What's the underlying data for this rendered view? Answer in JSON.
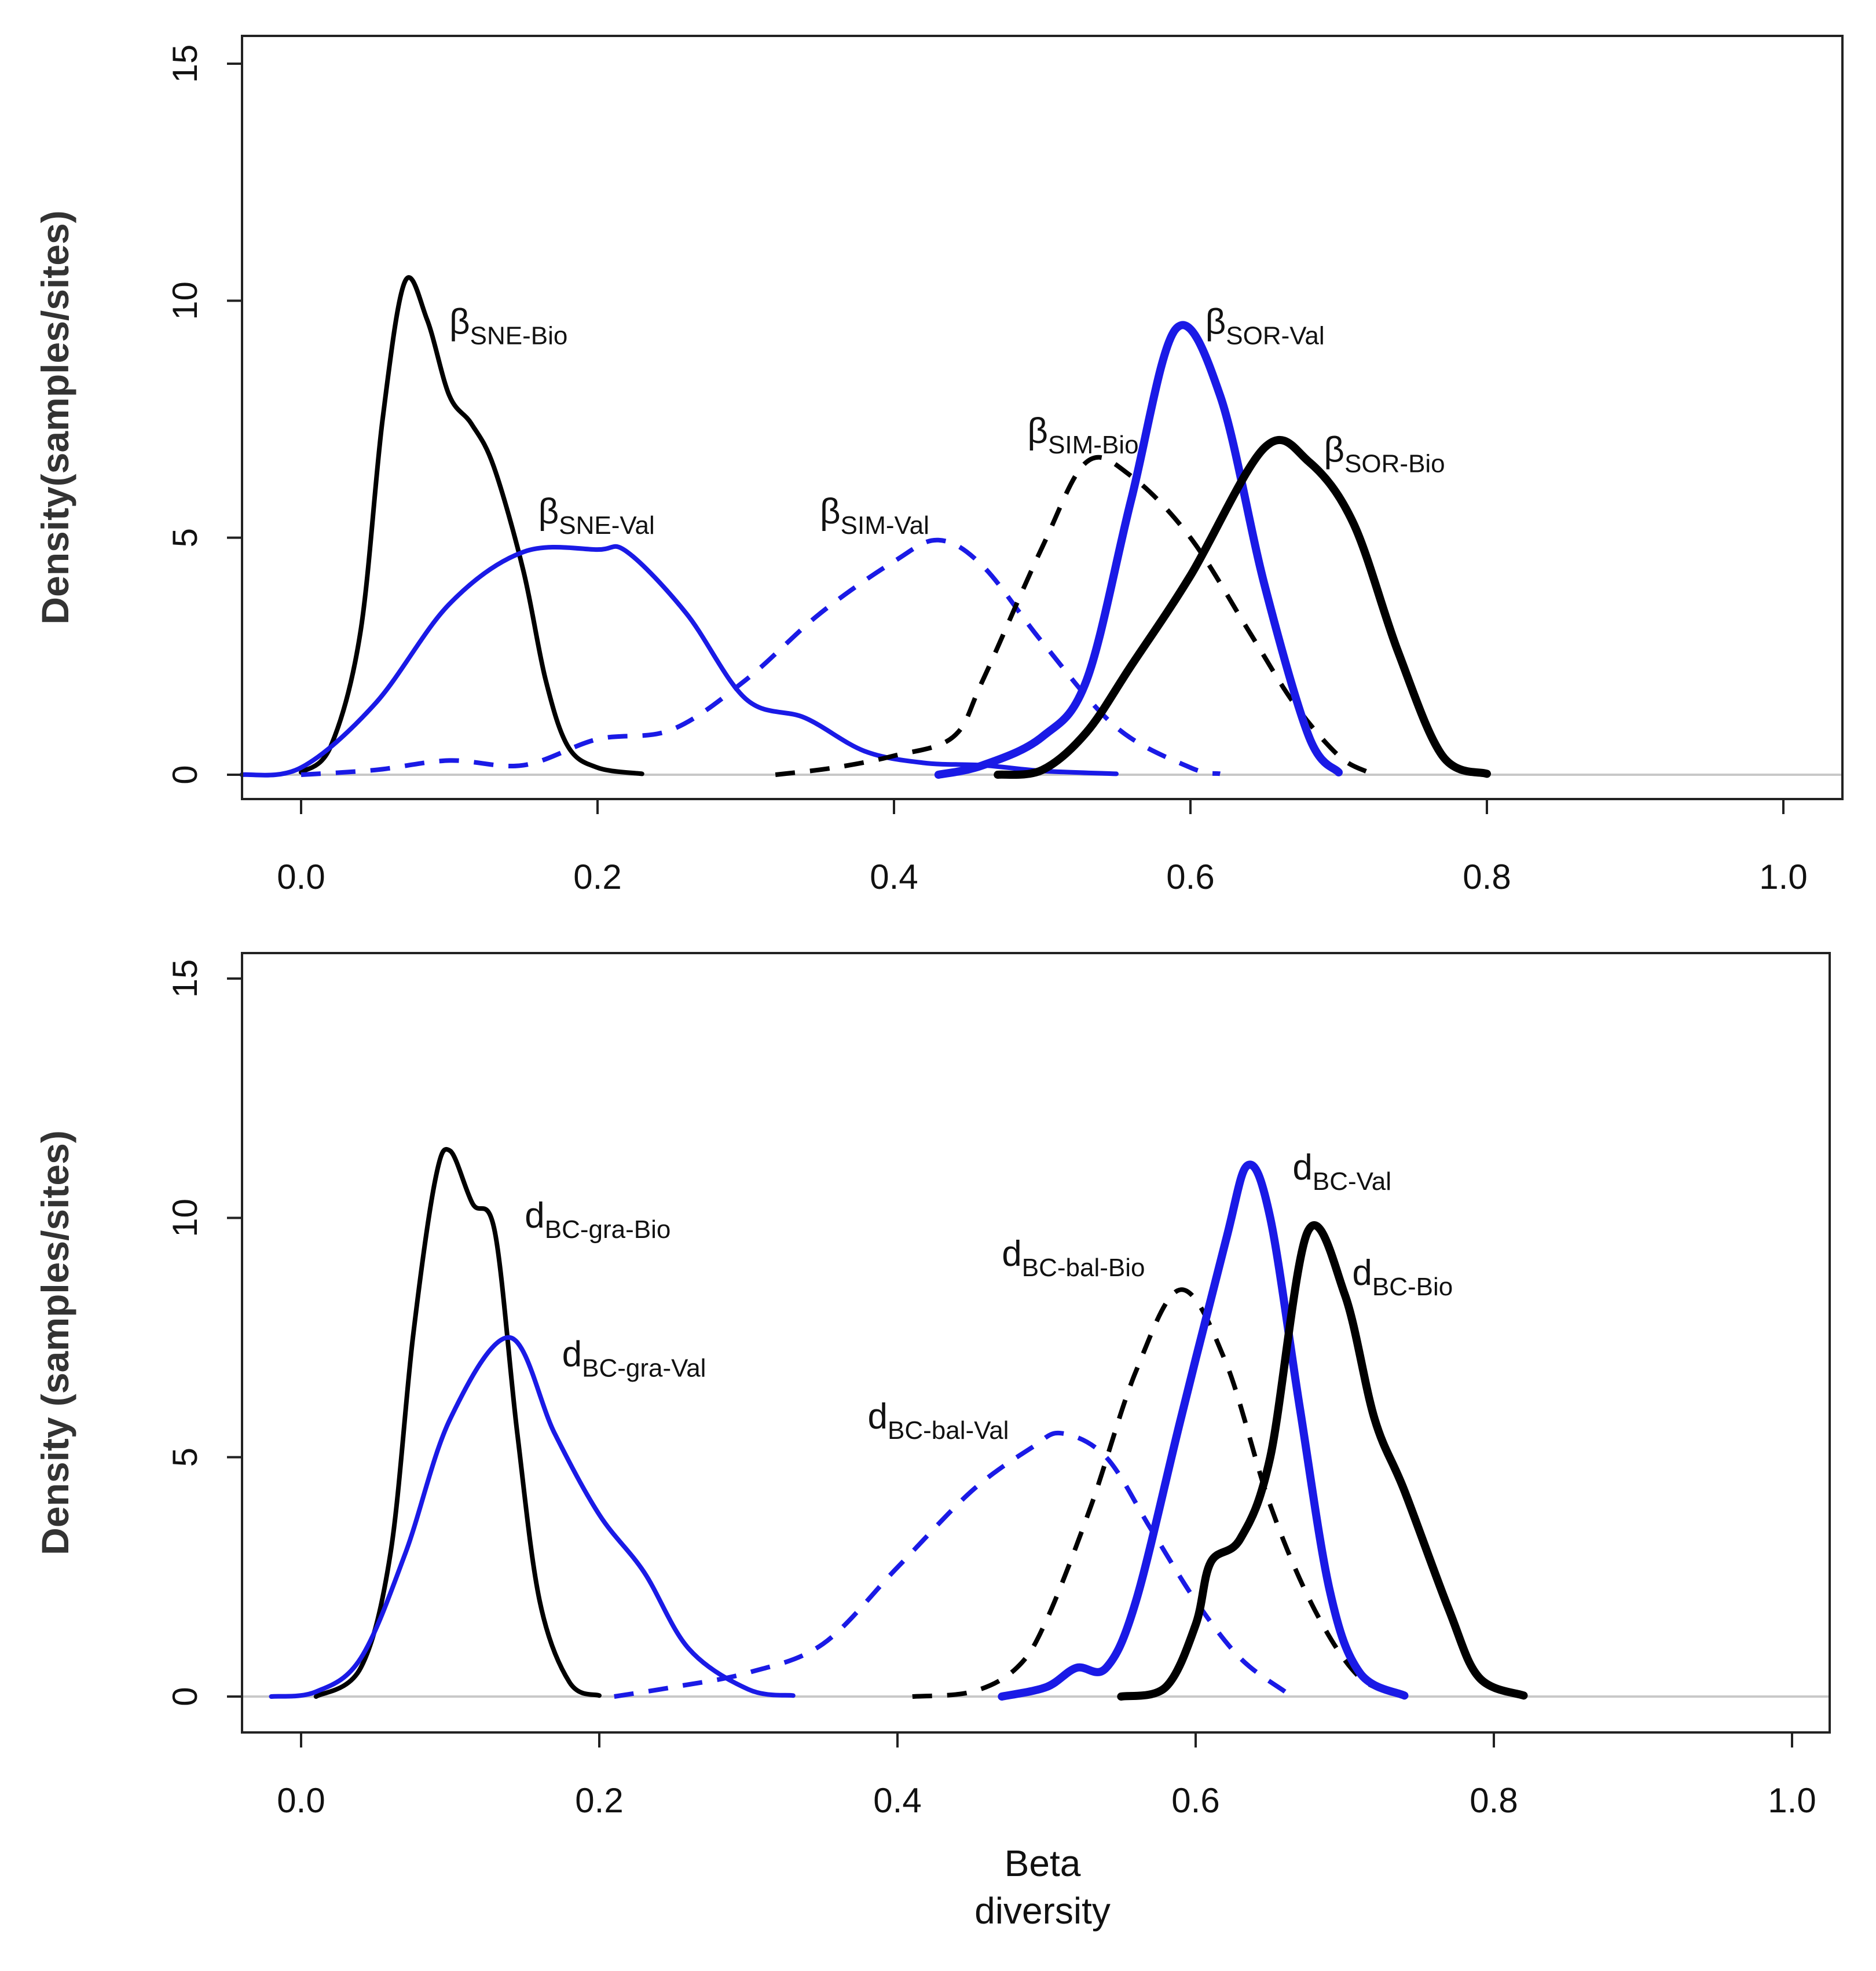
{
  "chart_data": [
    {
      "type": "line",
      "title": "",
      "xlabel": "",
      "ylabel": "Density(samples/sites)",
      "xlim": [
        0.0,
        1.0
      ],
      "ylim": [
        0,
        15
      ],
      "x_ticks": [
        "0.0",
        "0.2",
        "0.4",
        "0.6",
        "0.8",
        "1.0"
      ],
      "y_ticks": [
        "0",
        "5",
        "10",
        "15"
      ],
      "grid": false,
      "series": [
        {
          "name": "βSNE-Bio",
          "color": "#000000",
          "dash": "solid",
          "weight": "thin",
          "points": [
            [
              0.0,
              0.05
            ],
            [
              0.02,
              0.6
            ],
            [
              0.04,
              3.0
            ],
            [
              0.055,
              7.5
            ],
            [
              0.07,
              10.4
            ],
            [
              0.085,
              9.6
            ],
            [
              0.1,
              8.0
            ],
            [
              0.115,
              7.4
            ],
            [
              0.13,
              6.5
            ],
            [
              0.15,
              4.3
            ],
            [
              0.165,
              2.0
            ],
            [
              0.18,
              0.6
            ],
            [
              0.2,
              0.15
            ],
            [
              0.23,
              0.02
            ]
          ]
        },
        {
          "name": "βSNE-Val",
          "color": "#1a1ae6",
          "dash": "solid",
          "weight": "thin",
          "points": [
            [
              -0.04,
              0.0
            ],
            [
              0.0,
              0.15
            ],
            [
              0.05,
              1.5
            ],
            [
              0.1,
              3.6
            ],
            [
              0.15,
              4.7
            ],
            [
              0.2,
              4.75
            ],
            [
              0.22,
              4.7
            ],
            [
              0.26,
              3.4
            ],
            [
              0.3,
              1.6
            ],
            [
              0.34,
              1.2
            ],
            [
              0.38,
              0.5
            ],
            [
              0.42,
              0.25
            ],
            [
              0.46,
              0.2
            ],
            [
              0.5,
              0.08
            ],
            [
              0.55,
              0.02
            ]
          ]
        },
        {
          "name": "βSIM-Val",
          "color": "#1a1ae6",
          "dash": "dashed",
          "weight": "thin",
          "points": [
            [
              0.0,
              0.0
            ],
            [
              0.05,
              0.1
            ],
            [
              0.1,
              0.3
            ],
            [
              0.15,
              0.2
            ],
            [
              0.2,
              0.75
            ],
            [
              0.25,
              0.95
            ],
            [
              0.3,
              2.0
            ],
            [
              0.35,
              3.4
            ],
            [
              0.4,
              4.5
            ],
            [
              0.43,
              4.95
            ],
            [
              0.46,
              4.4
            ],
            [
              0.5,
              2.8
            ],
            [
              0.55,
              1.0
            ],
            [
              0.6,
              0.15
            ],
            [
              0.62,
              0.02
            ]
          ]
        },
        {
          "name": "βSIM-Bio",
          "color": "#000000",
          "dash": "dashed",
          "weight": "thin",
          "points": [
            [
              0.32,
              0.0
            ],
            [
              0.36,
              0.15
            ],
            [
              0.4,
              0.4
            ],
            [
              0.44,
              0.8
            ],
            [
              0.46,
              2.0
            ],
            [
              0.5,
              4.8
            ],
            [
              0.53,
              6.6
            ],
            [
              0.56,
              6.3
            ],
            [
              0.6,
              5.0
            ],
            [
              0.64,
              3.0
            ],
            [
              0.67,
              1.5
            ],
            [
              0.7,
              0.4
            ],
            [
              0.72,
              0.05
            ]
          ]
        },
        {
          "name": "βSOR-Val",
          "color": "#1a1ae6",
          "dash": "solid",
          "weight": "thick",
          "points": [
            [
              0.43,
              0.0
            ],
            [
              0.46,
              0.2
            ],
            [
              0.5,
              0.8
            ],
            [
              0.53,
              2.0
            ],
            [
              0.56,
              5.8
            ],
            [
              0.59,
              9.4
            ],
            [
              0.62,
              8.0
            ],
            [
              0.65,
              4.0
            ],
            [
              0.68,
              0.8
            ],
            [
              0.7,
              0.05
            ]
          ]
        },
        {
          "name": "βSOR-Bio",
          "color": "#000000",
          "dash": "solid",
          "weight": "thick",
          "points": [
            [
              0.47,
              0.0
            ],
            [
              0.5,
              0.1
            ],
            [
              0.53,
              0.9
            ],
            [
              0.56,
              2.3
            ],
            [
              0.6,
              4.2
            ],
            [
              0.65,
              6.9
            ],
            [
              0.68,
              6.6
            ],
            [
              0.71,
              5.3
            ],
            [
              0.74,
              2.6
            ],
            [
              0.77,
              0.4
            ],
            [
              0.8,
              0.02
            ]
          ]
        }
      ],
      "annotations": [
        {
          "base": "β",
          "sub": "SNE-Bio",
          "x": 0.1,
          "y": 9.3
        },
        {
          "base": "β",
          "sub": "SNE-Val",
          "x": 0.16,
          "y": 5.3
        },
        {
          "base": "β",
          "sub": "SIM-Val",
          "x": 0.35,
          "y": 5.3
        },
        {
          "base": "β",
          "sub": "SIM-Bio",
          "x": 0.49,
          "y": 7.0
        },
        {
          "base": "β",
          "sub": "SOR-Val",
          "x": 0.61,
          "y": 9.3
        },
        {
          "base": "β",
          "sub": "SOR-Bio",
          "x": 0.69,
          "y": 6.6
        }
      ]
    },
    {
      "type": "line",
      "title": "",
      "xlabel": "Beta diversity",
      "ylabel": "Density (samples/sites)",
      "xlim": [
        0.0,
        1.0
      ],
      "ylim": [
        0,
        15
      ],
      "x_ticks": [
        "0.0",
        "0.2",
        "0.4",
        "0.6",
        "0.8",
        "1.0"
      ],
      "y_ticks": [
        "0",
        "5",
        "10",
        "15"
      ],
      "grid": false,
      "series": [
        {
          "name": "dBC-gra-Bio",
          "color": "#000000",
          "dash": "solid",
          "weight": "thin",
          "points": [
            [
              0.01,
              0.0
            ],
            [
              0.04,
              0.6
            ],
            [
              0.06,
              3.0
            ],
            [
              0.075,
              7.5
            ],
            [
              0.09,
              10.8
            ],
            [
              0.1,
              11.4
            ],
            [
              0.115,
              10.3
            ],
            [
              0.13,
              9.7
            ],
            [
              0.145,
              5.5
            ],
            [
              0.16,
              2.0
            ],
            [
              0.18,
              0.3
            ],
            [
              0.2,
              0.02
            ]
          ]
        },
        {
          "name": "dBC-gra-Val",
          "color": "#1a1ae6",
          "dash": "solid",
          "weight": "thin",
          "points": [
            [
              -0.02,
              0.0
            ],
            [
              0.01,
              0.1
            ],
            [
              0.04,
              0.8
            ],
            [
              0.07,
              3.0
            ],
            [
              0.1,
              5.8
            ],
            [
              0.14,
              7.5
            ],
            [
              0.17,
              5.5
            ],
            [
              0.2,
              3.8
            ],
            [
              0.23,
              2.6
            ],
            [
              0.26,
              1.0
            ],
            [
              0.3,
              0.15
            ],
            [
              0.33,
              0.02
            ]
          ]
        },
        {
          "name": "dBC-bal-Val",
          "color": "#1a1ae6",
          "dash": "dashed",
          "weight": "thin",
          "points": [
            [
              0.21,
              0.0
            ],
            [
              0.25,
              0.2
            ],
            [
              0.3,
              0.5
            ],
            [
              0.35,
              1.1
            ],
            [
              0.4,
              2.7
            ],
            [
              0.45,
              4.3
            ],
            [
              0.49,
              5.2
            ],
            [
              0.51,
              5.5
            ],
            [
              0.54,
              5.0
            ],
            [
              0.57,
              3.5
            ],
            [
              0.6,
              2.0
            ],
            [
              0.63,
              0.8
            ],
            [
              0.66,
              0.1
            ]
          ]
        },
        {
          "name": "dBC-bal-Bio",
          "color": "#000000",
          "dash": "dashed",
          "weight": "thin",
          "points": [
            [
              0.41,
              0.0
            ],
            [
              0.45,
              0.1
            ],
            [
              0.48,
              0.6
            ],
            [
              0.5,
              1.6
            ],
            [
              0.53,
              4.0
            ],
            [
              0.56,
              6.8
            ],
            [
              0.59,
              8.5
            ],
            [
              0.62,
              7.0
            ],
            [
              0.65,
              4.0
            ],
            [
              0.68,
              1.8
            ],
            [
              0.71,
              0.4
            ],
            [
              0.74,
              0.02
            ]
          ]
        },
        {
          "name": "dBC-Val",
          "color": "#1a1ae6",
          "dash": "solid",
          "weight": "thick",
          "points": [
            [
              0.47,
              0.0
            ],
            [
              0.5,
              0.2
            ],
            [
              0.52,
              0.6
            ],
            [
              0.54,
              0.6
            ],
            [
              0.56,
              2.0
            ],
            [
              0.59,
              5.8
            ],
            [
              0.62,
              9.5
            ],
            [
              0.635,
              11.1
            ],
            [
              0.65,
              10.0
            ],
            [
              0.67,
              6.0
            ],
            [
              0.69,
              2.2
            ],
            [
              0.71,
              0.5
            ],
            [
              0.74,
              0.02
            ]
          ]
        },
        {
          "name": "dBC-Bio",
          "color": "#000000",
          "dash": "solid",
          "weight": "thick",
          "points": [
            [
              0.55,
              0.0
            ],
            [
              0.58,
              0.2
            ],
            [
              0.6,
              1.5
            ],
            [
              0.61,
              2.8
            ],
            [
              0.63,
              3.3
            ],
            [
              0.65,
              5.0
            ],
            [
              0.675,
              9.7
            ],
            [
              0.7,
              8.4
            ],
            [
              0.72,
              5.8
            ],
            [
              0.74,
              4.3
            ],
            [
              0.77,
              1.8
            ],
            [
              0.79,
              0.4
            ],
            [
              0.82,
              0.02
            ]
          ]
        }
      ],
      "annotations": [
        {
          "base": "d",
          "sub": "BC-gra-Bio",
          "x": 0.15,
          "y": 9.8
        },
        {
          "base": "d",
          "sub": "BC-gra-Val",
          "x": 0.175,
          "y": 6.9
        },
        {
          "base": "d",
          "sub": "BC-bal-Val",
          "x": 0.38,
          "y": 5.6
        },
        {
          "base": "d",
          "sub": "BC-bal-Bio",
          "x": 0.47,
          "y": 9.0
        },
        {
          "base": "d",
          "sub": "BC-Val",
          "x": 0.665,
          "y": 10.8
        },
        {
          "base": "d",
          "sub": "BC-Bio",
          "x": 0.705,
          "y": 8.6
        }
      ]
    }
  ]
}
